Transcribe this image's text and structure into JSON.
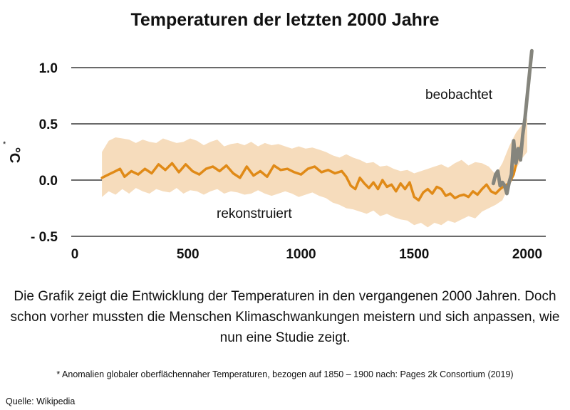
{
  "chart_data": {
    "type": "line",
    "title": "Temperaturen der letzten 2000 Jahre",
    "ylabel": "°C",
    "unit_marker": "*",
    "xlim": [
      0,
      2000
    ],
    "ylim": [
      -0.5,
      1.1
    ],
    "x_ticks": [
      "0",
      "500",
      "1000",
      "1500",
      "2000"
    ],
    "x_tick_values": [
      0,
      500,
      1000,
      1500,
      2000
    ],
    "y_ticks": [
      "1.0",
      "0.5",
      "0.0",
      "- 0.5"
    ],
    "y_tick_values": [
      1.0,
      0.5,
      0.0,
      -0.5
    ],
    "grid": "horizontal",
    "colors": {
      "reconstructed": "#e08a17",
      "band": "#f6dcbc",
      "observed": "#85857d"
    },
    "band": {
      "x": [
        120,
        150,
        180,
        210,
        240,
        270,
        300,
        330,
        360,
        390,
        420,
        450,
        480,
        510,
        540,
        570,
        600,
        630,
        660,
        690,
        720,
        750,
        780,
        810,
        840,
        870,
        900,
        930,
        960,
        990,
        1020,
        1050,
        1080,
        1110,
        1140,
        1170,
        1200,
        1230,
        1260,
        1290,
        1320,
        1350,
        1380,
        1410,
        1440,
        1470,
        1500,
        1530,
        1560,
        1590,
        1620,
        1650,
        1680,
        1710,
        1740,
        1770,
        1800,
        1830,
        1860,
        1890,
        1920,
        1950,
        1980,
        2000
      ],
      "upper": [
        0.25,
        0.35,
        0.38,
        0.37,
        0.36,
        0.33,
        0.36,
        0.34,
        0.33,
        0.37,
        0.35,
        0.33,
        0.34,
        0.37,
        0.35,
        0.31,
        0.34,
        0.36,
        0.3,
        0.32,
        0.33,
        0.31,
        0.34,
        0.3,
        0.33,
        0.31,
        0.32,
        0.3,
        0.28,
        0.3,
        0.28,
        0.29,
        0.27,
        0.25,
        0.22,
        0.2,
        0.23,
        0.2,
        0.18,
        0.15,
        0.16,
        0.12,
        0.13,
        0.1,
        0.08,
        0.09,
        0.06,
        0.08,
        0.1,
        0.12,
        0.14,
        0.11,
        0.15,
        0.18,
        0.13,
        0.16,
        0.15,
        0.12,
        0.05,
        0.15,
        0.3,
        0.42,
        0.5,
        0.55
      ],
      "lower": [
        -0.15,
        -0.1,
        -0.13,
        -0.08,
        -0.12,
        -0.07,
        -0.1,
        -0.12,
        -0.08,
        -0.1,
        -0.11,
        -0.07,
        -0.12,
        -0.09,
        -0.1,
        -0.13,
        -0.1,
        -0.08,
        -0.12,
        -0.1,
        -0.11,
        -0.13,
        -0.12,
        -0.09,
        -0.12,
        -0.14,
        -0.12,
        -0.1,
        -0.12,
        -0.15,
        -0.13,
        -0.11,
        -0.14,
        -0.16,
        -0.2,
        -0.22,
        -0.25,
        -0.26,
        -0.28,
        -0.3,
        -0.27,
        -0.32,
        -0.3,
        -0.33,
        -0.35,
        -0.36,
        -0.4,
        -0.38,
        -0.42,
        -0.38,
        -0.4,
        -0.36,
        -0.38,
        -0.35,
        -0.32,
        -0.34,
        -0.28,
        -0.25,
        -0.22,
        -0.18,
        -0.05,
        0.1,
        0.2,
        0.25
      ]
    },
    "series": [
      {
        "name": "rekonstruiert",
        "x": [
          120,
          150,
          180,
          200,
          220,
          250,
          280,
          310,
          340,
          370,
          400,
          430,
          460,
          490,
          520,
          550,
          580,
          610,
          640,
          670,
          700,
          730,
          760,
          790,
          820,
          850,
          880,
          910,
          940,
          970,
          1000,
          1030,
          1060,
          1090,
          1120,
          1150,
          1180,
          1200,
          1220,
          1240,
          1260,
          1280,
          1300,
          1320,
          1340,
          1360,
          1380,
          1400,
          1420,
          1440,
          1460,
          1480,
          1500,
          1520,
          1540,
          1560,
          1580,
          1600,
          1620,
          1640,
          1660,
          1680,
          1700,
          1720,
          1740,
          1760,
          1780,
          1800,
          1820,
          1840,
          1860,
          1880,
          1900,
          1920,
          1940,
          1960,
          1980
        ],
        "y": [
          0.02,
          0.05,
          0.08,
          0.1,
          0.03,
          0.08,
          0.05,
          0.1,
          0.06,
          0.14,
          0.09,
          0.15,
          0.07,
          0.14,
          0.08,
          0.05,
          0.1,
          0.12,
          0.08,
          0.13,
          0.06,
          0.02,
          0.12,
          0.04,
          0.08,
          0.03,
          0.13,
          0.09,
          0.1,
          0.07,
          0.05,
          0.1,
          0.12,
          0.07,
          0.09,
          0.06,
          0.08,
          0.03,
          -0.05,
          -0.08,
          0.02,
          -0.03,
          -0.07,
          -0.02,
          -0.08,
          0.0,
          -0.06,
          -0.04,
          -0.1,
          -0.03,
          -0.08,
          -0.02,
          -0.15,
          -0.18,
          -0.11,
          -0.08,
          -0.12,
          -0.06,
          -0.08,
          -0.14,
          -0.12,
          -0.16,
          -0.14,
          -0.13,
          -0.15,
          -0.1,
          -0.13,
          -0.08,
          -0.04,
          -0.1,
          -0.12,
          -0.08,
          -0.05,
          -0.03,
          0.05,
          0.22,
          0.35
        ]
      },
      {
        "name": "beobachtet",
        "x": [
          1850,
          1860,
          1870,
          1880,
          1890,
          1900,
          1910,
          1920,
          1930,
          1940,
          1950,
          1960,
          1970,
          1980,
          1990,
          2000,
          2010,
          2020
        ],
        "y": [
          -0.03,
          0.05,
          0.08,
          -0.05,
          -0.02,
          -0.05,
          -0.12,
          -0.02,
          0.05,
          0.35,
          0.15,
          0.28,
          0.18,
          0.4,
          0.55,
          0.75,
          0.95,
          1.15
        ]
      }
    ]
  },
  "caption": "Die Grafik zeigt die Entwicklung der Temperaturen in den vergangenen 2000 Jahren. Doch schon vorher mussten die Menschen Klimaschwankungen meistern und sich anpassen, wie nun eine Studie zeigt.",
  "footnote": "* Anomalien globaler oberflächennaher Temperaturen, bezogen auf 1850 – 1900 nach: Pages 2k Consortium (2019)",
  "source": "Quelle: Wikipedia"
}
